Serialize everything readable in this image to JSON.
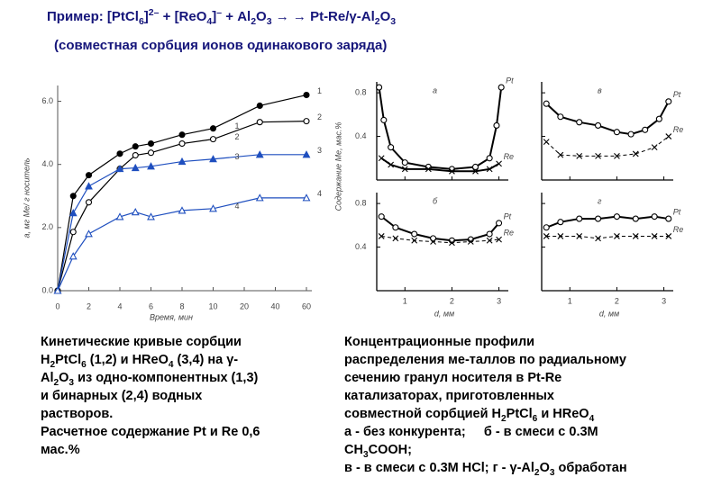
{
  "header": {
    "title": [
      {
        "t": "Пример: [PtCl"
      },
      {
        "t": "6",
        "sub": true
      },
      {
        "t": "]"
      },
      {
        "t": "2–",
        "sup": true
      },
      {
        "t": " + [ReO"
      },
      {
        "t": "4",
        "sub": true
      },
      {
        "t": "]"
      },
      {
        "t": "–",
        "sup": true
      },
      {
        "t": " + Al"
      },
      {
        "t": "2",
        "sub": true
      },
      {
        "t": "O"
      },
      {
        "t": "3",
        "sub": true
      },
      {
        "t": " → → Pt-Re/γ-Al"
      },
      {
        "t": "2",
        "sub": true
      },
      {
        "t": "O"
      },
      {
        "t": "3",
        "sub": true
      }
    ],
    "subtitle": "(совместная сорбция ионов одинакового заряда)"
  },
  "chart_data": [
    {
      "type": "line",
      "xlabel": "Время, мин",
      "ylabel": "a, мг Me/ г носитель",
      "x": [
        0,
        1,
        2,
        4,
        5,
        6,
        8,
        10,
        30,
        60
      ],
      "xlim": [
        0,
        60
      ],
      "xticks": [
        0,
        2,
        4,
        6,
        8,
        10,
        20,
        40,
        60
      ],
      "xscale": "broken",
      "ylim": [
        0,
        6.5
      ],
      "yticks": [
        {
          "value": 0,
          "label": "0.0"
        },
        {
          "value": 2,
          "label": "2.0"
        },
        {
          "value": 4,
          "label": "4.0"
        },
        {
          "value": 6,
          "label": "6.0"
        }
      ],
      "series": [
        {
          "name": "1",
          "color": "#000000",
          "marker": "circle",
          "filled": true,
          "values": [
            0,
            3.0,
            3.66,
            4.34,
            4.57,
            4.66,
            4.94,
            5.14,
            5.86,
            6.2
          ]
        },
        {
          "name": "2",
          "color": "#000000",
          "marker": "circle",
          "filled": false,
          "values": [
            0,
            1.86,
            2.8,
            3.86,
            4.29,
            4.37,
            4.66,
            4.8,
            5.34,
            5.37
          ]
        },
        {
          "name": "3",
          "color": "#1f4fbf",
          "marker": "triangle",
          "filled": true,
          "values": [
            0,
            2.46,
            3.31,
            3.86,
            3.89,
            3.94,
            4.09,
            4.17,
            4.31,
            4.31
          ]
        },
        {
          "name": "4",
          "color": "#1f4fbf",
          "marker": "triangle",
          "filled": false,
          "values": [
            0,
            1.09,
            1.8,
            2.34,
            2.49,
            2.34,
            2.54,
            2.6,
            2.94,
            2.94
          ]
        }
      ]
    },
    {
      "type": "profiles",
      "xlabel": "d, мм",
      "ylabel": "Содержание Me, мас.%",
      "xlim": [
        0.4,
        3.2
      ],
      "xticks": [
        1,
        2,
        3
      ],
      "ylim": [
        0,
        0.9
      ],
      "yticks": [
        0.4,
        0.8
      ],
      "color": "#000000",
      "panels": [
        {
          "label": "а",
          "series": [
            {
              "name": "Pt",
              "marker": "circle",
              "dashed": false,
              "x": [
                0.45,
                0.55,
                0.7,
                1.0,
                1.5,
                2.0,
                2.5,
                2.8,
                2.95,
                3.05
              ],
              "values": [
                0.85,
                0.55,
                0.3,
                0.16,
                0.12,
                0.1,
                0.12,
                0.2,
                0.5,
                0.85
              ]
            },
            {
              "name": "Re",
              "marker": "cross",
              "dashed": false,
              "x": [
                0.5,
                0.7,
                1.0,
                1.5,
                2.0,
                2.5,
                2.8,
                3.0
              ],
              "values": [
                0.2,
                0.14,
                0.1,
                0.1,
                0.08,
                0.08,
                0.1,
                0.15
              ]
            }
          ]
        },
        {
          "label": "в",
          "series": [
            {
              "name": "Pt",
              "marker": "circle",
              "dashed": false,
              "x": [
                0.5,
                0.8,
                1.2,
                1.6,
                2.0,
                2.3,
                2.6,
                2.9,
                3.1
              ],
              "values": [
                0.7,
                0.58,
                0.53,
                0.5,
                0.44,
                0.42,
                0.46,
                0.56,
                0.72
              ]
            },
            {
              "name": "Re",
              "marker": "cross",
              "dashed": true,
              "x": [
                0.5,
                0.8,
                1.2,
                1.6,
                2.0,
                2.4,
                2.8,
                3.1
              ],
              "values": [
                0.35,
                0.23,
                0.22,
                0.22,
                0.22,
                0.24,
                0.3,
                0.4
              ]
            }
          ]
        },
        {
          "label": "б",
          "series": [
            {
              "name": "Pt",
              "marker": "circle",
              "dashed": false,
              "x": [
                0.5,
                0.8,
                1.2,
                1.6,
                2.0,
                2.4,
                2.8,
                3.0
              ],
              "values": [
                0.68,
                0.58,
                0.52,
                0.48,
                0.46,
                0.47,
                0.52,
                0.62
              ]
            },
            {
              "name": "Re",
              "marker": "cross",
              "dashed": true,
              "x": [
                0.5,
                0.8,
                1.2,
                1.6,
                2.0,
                2.4,
                2.8,
                3.0
              ],
              "values": [
                0.5,
                0.48,
                0.46,
                0.45,
                0.44,
                0.45,
                0.46,
                0.47
              ]
            }
          ]
        },
        {
          "label": "г",
          "series": [
            {
              "name": "Pt",
              "marker": "circle",
              "dashed": false,
              "x": [
                0.5,
                0.8,
                1.2,
                1.6,
                2.0,
                2.4,
                2.8,
                3.1
              ],
              "values": [
                0.58,
                0.63,
                0.66,
                0.66,
                0.68,
                0.66,
                0.68,
                0.66
              ]
            },
            {
              "name": "Re",
              "marker": "cross",
              "dashed": true,
              "x": [
                0.5,
                0.8,
                1.2,
                1.6,
                2.0,
                2.4,
                2.8,
                3.1
              ],
              "values": [
                0.5,
                0.5,
                0.5,
                0.48,
                0.5,
                0.5,
                0.5,
                0.5
              ]
            }
          ]
        }
      ]
    }
  ],
  "captions": {
    "left": [
      [
        {
          "t": "Кинетические кривые сорбции"
        }
      ],
      [
        {
          "t": "H"
        },
        {
          "t": "2",
          "sub": true
        },
        {
          "t": "PtCl"
        },
        {
          "t": "6",
          "sub": true
        },
        {
          "t": " (1,2) и HReO"
        },
        {
          "t": "4",
          "sub": true
        },
        {
          "t": " (3,4) на γ-"
        }
      ],
      [
        {
          "t": "Al"
        },
        {
          "t": "2",
          "sub": true
        },
        {
          "t": "O"
        },
        {
          "t": "3",
          "sub": true
        },
        {
          "t": " из одно-компонентных (1,3)"
        }
      ],
      [
        {
          "t": "и бинарных (2,4) водных"
        }
      ],
      [
        {
          "t": "растворов."
        }
      ],
      [
        {
          "t": "Расчетное содержание Pt и Re 0,6"
        }
      ],
      [
        {
          "t": "мас.%"
        }
      ]
    ],
    "right": [
      [
        {
          "t": "Концентрационные профили"
        }
      ],
      [
        {
          "t": "распределения ме-таллов по радиальному"
        }
      ],
      [
        {
          "t": "сечению гранул носителя в Pt-Re"
        }
      ],
      [
        {
          "t": "катализаторах, приготовленных"
        }
      ],
      [
        {
          "t": "совместной сорбцией H"
        },
        {
          "t": "2",
          "sub": true
        },
        {
          "t": "PtCl"
        },
        {
          "t": "6",
          "sub": true
        },
        {
          "t": " и HReO"
        },
        {
          "t": "4",
          "sub": true
        }
      ],
      [
        {
          "t": "а - без конкурента;     б - в смеси с 0.3М"
        }
      ],
      [
        {
          "t": "CH"
        },
        {
          "t": "3",
          "sub": true
        },
        {
          "t": "COOH;"
        }
      ],
      [
        {
          "t": "в - в смеси с 0.3М HCl; г - γ-Al"
        },
        {
          "t": "2",
          "sub": true
        },
        {
          "t": "O"
        },
        {
          "t": "3",
          "sub": true
        },
        {
          "t": " обработан"
        }
      ]
    ]
  }
}
